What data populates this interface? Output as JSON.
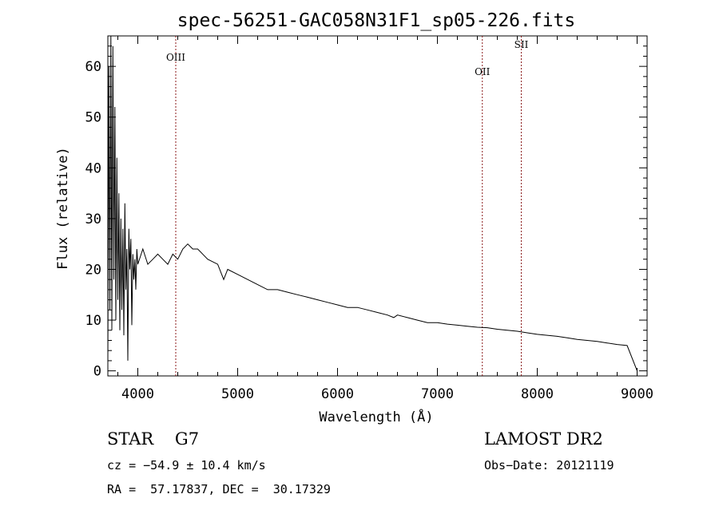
{
  "chart_data": {
    "type": "line",
    "title": "spec-56251-GAC058N31F1_sp05-226.fits",
    "xlabel": "Wavelength (Å)",
    "ylabel": "Flux (relative)",
    "xlim": [
      3700,
      9100
    ],
    "ylim": [
      -1,
      66
    ],
    "xticks": [
      4000,
      5000,
      6000,
      7000,
      8000,
      9000
    ],
    "yticks": [
      0,
      10,
      20,
      30,
      40,
      50,
      60
    ],
    "grid": false,
    "spectrum": {
      "x": [
        3700,
        3710,
        3720,
        3730,
        3740,
        3750,
        3760,
        3770,
        3780,
        3790,
        3800,
        3810,
        3820,
        3830,
        3840,
        3850,
        3860,
        3870,
        3880,
        3890,
        3900,
        3910,
        3920,
        3930,
        3940,
        3950,
        3960,
        3970,
        3980,
        3990,
        4000,
        4050,
        4100,
        4150,
        4200,
        4250,
        4300,
        4350,
        4400,
        4450,
        4500,
        4550,
        4600,
        4700,
        4800,
        4860,
        4900,
        5000,
        5100,
        5200,
        5300,
        5400,
        5500,
        5600,
        5700,
        5800,
        5900,
        6000,
        6100,
        6200,
        6300,
        6400,
        6500,
        6563,
        6600,
        6700,
        6800,
        6900,
        7000,
        7100,
        7200,
        7300,
        7400,
        7500,
        7600,
        7700,
        7800,
        7900,
        8000,
        8100,
        8200,
        8300,
        8400,
        8500,
        8600,
        8700,
        8800,
        8900,
        9000
      ],
      "y": [
        2,
        60,
        12,
        66,
        8,
        64,
        18,
        52,
        10,
        42,
        14,
        35,
        8,
        30,
        12,
        28,
        7,
        33,
        16,
        24,
        2,
        28,
        20,
        26,
        9,
        23,
        18,
        22,
        16,
        24,
        21,
        24,
        21,
        22,
        23,
        22,
        21,
        23,
        22,
        24,
        25,
        24,
        24,
        22,
        21,
        18,
        20,
        19,
        18,
        17,
        16,
        16,
        15.5,
        15,
        14.5,
        14,
        13.5,
        13,
        12.5,
        12.5,
        12,
        11.5,
        11,
        10.5,
        11,
        10.5,
        10,
        9.5,
        9.5,
        9.2,
        9,
        8.8,
        8.6,
        8.5,
        8.2,
        8,
        7.8,
        7.5,
        7.2,
        7,
        6.8,
        6.5,
        6.2,
        6,
        5.8,
        5.5,
        5.2,
        5,
        0
      ]
    },
    "lines": [
      {
        "name": "OIII",
        "x": 4380
      },
      {
        "name": "OII",
        "x": 7450
      },
      {
        "name": "SII",
        "x": 7840
      }
    ],
    "line_color": "#8b1a1a"
  },
  "info": {
    "left_big": "STAR    G7",
    "right_big": "LAMOST DR2",
    "cz": "cz = −54.9 ± 10.4 km/s",
    "obs_date": "Obs−Date: 20121119",
    "radec": "RA =  57.17837, DEC =  30.17329"
  }
}
